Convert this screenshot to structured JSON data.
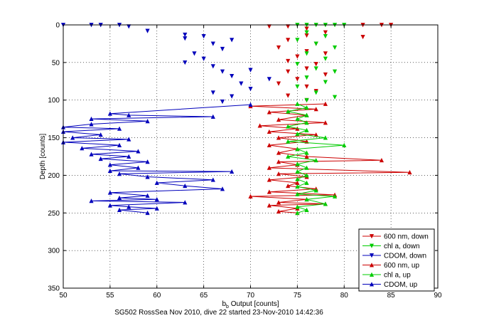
{
  "chart_data": {
    "type": "line",
    "title": "",
    "xlabel": "b",
    "xlabel_sub": "b",
    "xlabel_rest": " Output [counts]",
    "ylabel": "Depth [counts]",
    "caption": "SG502 RossSea Nov 2010, dive 22 started 23-Nov-2010 14:42:36",
    "xlim": [
      50,
      90
    ],
    "ylim": [
      0,
      350
    ],
    "y_reversed": true,
    "grid": "dotted",
    "legend_position": "bottom-right",
    "x_ticks": [
      "50",
      "55",
      "60",
      "65",
      "70",
      "75",
      "80",
      "85",
      "90"
    ],
    "y_ticks": [
      "0",
      "50",
      "100",
      "150",
      "200",
      "250",
      "300",
      "350"
    ],
    "colors": {
      "red": "#cc0000",
      "green": "#00cc00",
      "blue": "#0000bb"
    },
    "series": [
      {
        "name": "600 nm, down",
        "color": "#cc0000",
        "marker": "triangle-down",
        "connected": false,
        "points": [
          [
            84,
            0
          ],
          [
            85,
            0
          ],
          [
            82,
            0
          ],
          [
            72,
            2
          ],
          [
            74,
            2
          ],
          [
            76,
            5
          ],
          [
            78,
            10
          ],
          [
            82,
            16
          ],
          [
            76,
            14
          ],
          [
            74,
            20
          ],
          [
            77,
            25
          ],
          [
            73,
            30
          ],
          [
            76,
            35
          ],
          [
            78,
            38
          ],
          [
            75,
            42
          ],
          [
            74,
            48
          ],
          [
            77,
            52
          ],
          [
            76,
            58
          ],
          [
            74,
            62
          ],
          [
            78,
            66
          ],
          [
            75,
            72
          ],
          [
            73,
            78
          ],
          [
            76,
            82
          ],
          [
            77,
            88
          ],
          [
            74,
            94
          ],
          [
            76,
            100
          ]
        ]
      },
      {
        "name": "chl a, down",
        "color": "#00cc00",
        "marker": "triangle-down",
        "connected": false,
        "points": [
          [
            75,
            0
          ],
          [
            76,
            0
          ],
          [
            77,
            0
          ],
          [
            78,
            0
          ],
          [
            79,
            0
          ],
          [
            80,
            0
          ],
          [
            76,
            10
          ],
          [
            78,
            15
          ],
          [
            75,
            20
          ],
          [
            77,
            25
          ],
          [
            79,
            30
          ],
          [
            76,
            38
          ],
          [
            78,
            45
          ],
          [
            75,
            52
          ],
          [
            77,
            58
          ],
          [
            79,
            62
          ],
          [
            76,
            70
          ],
          [
            78,
            76
          ],
          [
            75,
            82
          ],
          [
            77,
            90
          ],
          [
            79,
            96
          ],
          [
            76,
            100
          ]
        ]
      },
      {
        "name": "CDOM, down",
        "color": "#0000bb",
        "marker": "triangle-down",
        "connected": false,
        "points": [
          [
            50,
            0
          ],
          [
            53,
            0
          ],
          [
            54,
            0
          ],
          [
            56,
            0
          ],
          [
            57,
            2
          ],
          [
            59,
            8
          ],
          [
            63,
            13
          ],
          [
            63,
            18
          ],
          [
            65,
            15
          ],
          [
            66,
            25
          ],
          [
            68,
            20
          ],
          [
            67,
            32
          ],
          [
            64,
            38
          ],
          [
            65,
            45
          ],
          [
            63,
            50
          ],
          [
            66,
            55
          ],
          [
            67,
            62
          ],
          [
            68,
            68
          ],
          [
            70,
            60
          ],
          [
            72,
            72
          ],
          [
            69,
            78
          ],
          [
            70,
            85
          ],
          [
            66,
            90
          ],
          [
            68,
            95
          ],
          [
            67,
            102
          ]
        ]
      },
      {
        "name": "600 nm, up",
        "color": "#cc0000",
        "marker": "triangle-up",
        "connected": true,
        "points": [
          [
            78,
            105
          ],
          [
            70,
            108
          ],
          [
            77,
            112
          ],
          [
            72,
            116
          ],
          [
            76,
            120
          ],
          [
            73,
            126
          ],
          [
            78,
            130
          ],
          [
            71,
            134
          ],
          [
            75,
            138
          ],
          [
            72,
            142
          ],
          [
            77,
            146
          ],
          [
            73,
            150
          ],
          [
            76,
            155
          ],
          [
            72,
            160
          ],
          [
            75,
            165
          ],
          [
            73,
            170
          ],
          [
            76,
            175
          ],
          [
            84,
            180
          ],
          [
            73,
            182
          ],
          [
            75,
            186
          ],
          [
            72,
            190
          ],
          [
            87,
            196
          ],
          [
            73,
            198
          ],
          [
            76,
            202
          ],
          [
            72,
            206
          ],
          [
            75,
            210
          ],
          [
            74,
            214
          ],
          [
            77,
            218
          ],
          [
            72,
            222
          ],
          [
            79,
            226
          ],
          [
            70,
            228
          ],
          [
            76,
            232
          ],
          [
            73,
            236
          ],
          [
            78,
            238
          ],
          [
            72,
            240
          ],
          [
            75,
            244
          ],
          [
            73,
            248
          ],
          [
            75,
            250
          ]
        ]
      },
      {
        "name": "chl a, up",
        "color": "#00cc00",
        "marker": "triangle-up",
        "connected": true,
        "points": [
          [
            75,
            105
          ],
          [
            76,
            110
          ],
          [
            74,
            115
          ],
          [
            76,
            120
          ],
          [
            75,
            125
          ],
          [
            76,
            130
          ],
          [
            74,
            135
          ],
          [
            76,
            140
          ],
          [
            75,
            145
          ],
          [
            78,
            150
          ],
          [
            74,
            155
          ],
          [
            80,
            160
          ],
          [
            75,
            165
          ],
          [
            76,
            170
          ],
          [
            74,
            175
          ],
          [
            77,
            180
          ],
          [
            75,
            185
          ],
          [
            76,
            190
          ],
          [
            75,
            195
          ],
          [
            76,
            200
          ],
          [
            75,
            205
          ],
          [
            76,
            210
          ],
          [
            75,
            215
          ],
          [
            77,
            220
          ],
          [
            75,
            225
          ],
          [
            79,
            228
          ],
          [
            76,
            232
          ],
          [
            78,
            238
          ],
          [
            75,
            242
          ],
          [
            76,
            246
          ],
          [
            75,
            250
          ]
        ]
      },
      {
        "name": "CDOM, up",
        "color": "#0000bb",
        "marker": "triangle-up",
        "connected": true,
        "points": [
          [
            70,
            106
          ],
          [
            55,
            118
          ],
          [
            57,
            120
          ],
          [
            66,
            122
          ],
          [
            53,
            125
          ],
          [
            59,
            128
          ],
          [
            53,
            132
          ],
          [
            50,
            136
          ],
          [
            56,
            138
          ],
          [
            50,
            142
          ],
          [
            54,
            146
          ],
          [
            51,
            150
          ],
          [
            57,
            152
          ],
          [
            50,
            156
          ],
          [
            56,
            160
          ],
          [
            52,
            164
          ],
          [
            58,
            168
          ],
          [
            53,
            172
          ],
          [
            57,
            175
          ],
          [
            54,
            178
          ],
          [
            59,
            182
          ],
          [
            55,
            186
          ],
          [
            58,
            190
          ],
          [
            55,
            194
          ],
          [
            68,
            195
          ],
          [
            56,
            198
          ],
          [
            59,
            202
          ],
          [
            66,
            206
          ],
          [
            60,
            210
          ],
          [
            63,
            214
          ],
          [
            67,
            218
          ],
          [
            55,
            223
          ],
          [
            59,
            227
          ],
          [
            56,
            230
          ],
          [
            60,
            232
          ],
          [
            53,
            234
          ],
          [
            63,
            236
          ],
          [
            55,
            240
          ],
          [
            57,
            242
          ],
          [
            60,
            244
          ],
          [
            56,
            246
          ],
          [
            59,
            250
          ]
        ]
      }
    ]
  }
}
